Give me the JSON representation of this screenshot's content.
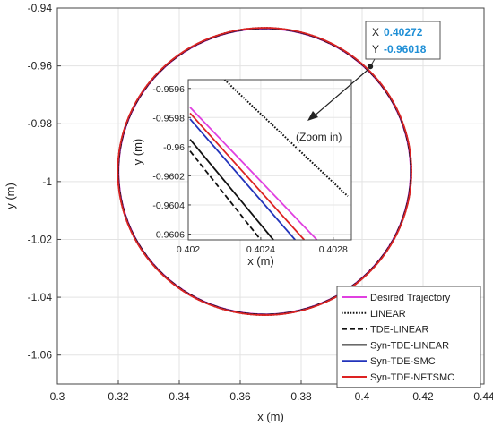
{
  "chart_data": {
    "type": "line",
    "xlabel": "x (m)",
    "ylabel": "y (m)",
    "xlim": [
      0.3,
      0.44
    ],
    "ylim": [
      -1.07,
      -0.94
    ],
    "xticks": [
      "0.3",
      "0.32",
      "0.34",
      "0.36",
      "0.38",
      "0.4",
      "0.42",
      "0.44"
    ],
    "yticks": [
      "-0.94",
      "-0.96",
      "-0.98",
      "-1",
      "-1.02",
      "-1.04",
      "-1.06"
    ],
    "grid": true,
    "circle": {
      "center": [
        0.368,
        -0.9965
      ],
      "radius_x": 0.048,
      "radius_y": 0.0495
    },
    "series": [
      {
        "name": "Desired Trajectory",
        "color": "#e040e0",
        "dash": "solid"
      },
      {
        "name": "LINEAR",
        "color": "#111111",
        "dash": "dotted"
      },
      {
        "name": "TDE-LINEAR",
        "color": "#111111",
        "dash": "dashed"
      },
      {
        "name": "Syn-TDE-LINEAR",
        "color": "#111111",
        "dash": "solid"
      },
      {
        "name": "Syn-TDE-SMC",
        "color": "#2233bb",
        "dash": "solid"
      },
      {
        "name": "Syn-TDE-NFTSMC",
        "color": "#dd2222",
        "dash": "solid"
      }
    ],
    "legend_position": "bottom-right",
    "datatip": {
      "x_label": "X",
      "x_value": "0.40272",
      "y_label": "Y",
      "y_value": "-0.96018",
      "point": [
        0.4027,
        -0.9602
      ]
    },
    "annotation": "(Zoom in)",
    "inset": {
      "xlabel": "x (m)",
      "ylabel": "y (m)",
      "xlim": [
        0.402,
        0.4029
      ],
      "ylim": [
        -0.96064,
        -0.95954
      ],
      "xticks": [
        "0.402",
        "0.4024",
        "0.4028"
      ],
      "yticks": [
        "-0.9596",
        "-0.9598",
        "-0.96",
        "-0.9602",
        "-0.9604",
        "-0.9606"
      ],
      "lines": [
        {
          "series": "Desired Trajectory",
          "from": [
            0.40201,
            -0.95973
          ],
          "to": [
            0.40271,
            -0.96064
          ]
        },
        {
          "series": "Syn-TDE-NFTSMC",
          "from": [
            0.40201,
            -0.95977
          ],
          "to": [
            0.40264,
            -0.96064
          ]
        },
        {
          "series": "Syn-TDE-SMC",
          "from": [
            0.40201,
            -0.95981
          ],
          "to": [
            0.40259,
            -0.96064
          ]
        },
        {
          "series": "Syn-TDE-LINEAR",
          "from": [
            0.40201,
            -0.95995
          ],
          "to": [
            0.40247,
            -0.96064
          ]
        },
        {
          "series": "TDE-LINEAR",
          "from": [
            0.40201,
            -0.96003
          ],
          "to": [
            0.4024,
            -0.96064
          ]
        },
        {
          "series": "LINEAR",
          "from": [
            0.4022,
            -0.95954
          ],
          "to": [
            0.40288,
            -0.96034
          ]
        }
      ]
    }
  }
}
